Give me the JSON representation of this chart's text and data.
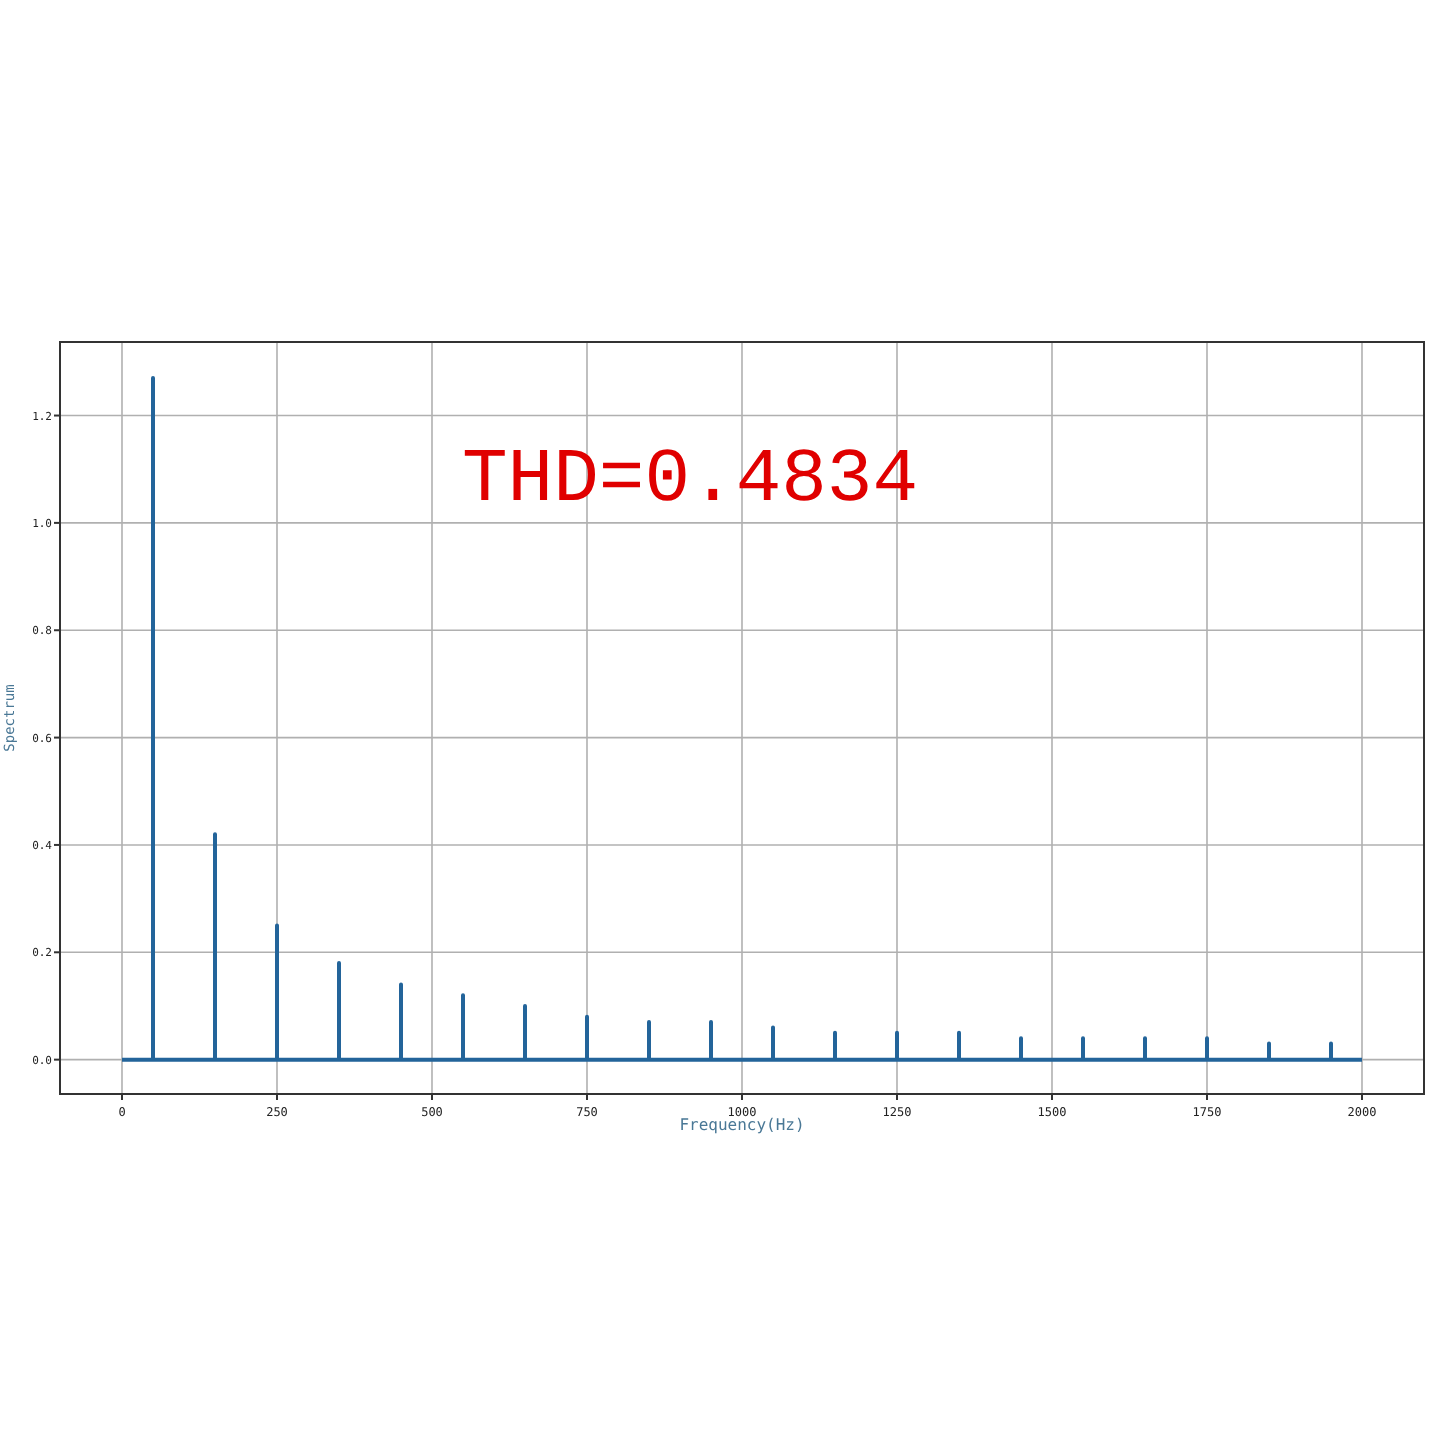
{
  "chart_data": {
    "type": "line",
    "xlabel": "Frequency(Hz)",
    "ylabel": "Spectrum",
    "annotations": [
      "THD=0.4834"
    ],
    "xlim": [
      -100,
      2100
    ],
    "xticks": [
      0,
      250,
      500,
      750,
      1000,
      1250,
      1500,
      1750,
      2000
    ],
    "ylim": [
      -0.064,
      1.337
    ],
    "yticks": [
      {
        "value": 0,
        "label": "0.0"
      },
      {
        "value": 0.2,
        "label": "0.2"
      },
      {
        "value": 0.4,
        "label": "0.4"
      },
      {
        "value": 0.6,
        "label": "0.6"
      },
      {
        "value": 0.8,
        "label": "0.8"
      },
      {
        "value": 1,
        "label": "1.0"
      },
      {
        "value": 1.2,
        "label": "1.2"
      }
    ],
    "grid": true,
    "marker": "none",
    "line_style": "solid",
    "series": [
      {
        "color": "#23649a",
        "x": [
          0,
          50,
          50,
          50,
          150,
          150,
          150,
          250,
          250,
          250,
          350,
          350,
          350,
          450,
          450,
          450,
          550,
          550,
          550,
          650,
          650,
          650,
          750,
          750,
          750,
          850,
          850,
          850,
          950,
          950,
          950,
          1050,
          1050,
          1050,
          1150,
          1150,
          1150,
          1250,
          1250,
          1250,
          1350,
          1350,
          1350,
          1450,
          1450,
          1450,
          1550,
          1550,
          1550,
          1650,
          1650,
          1650,
          1750,
          1750,
          1750,
          1850,
          1850,
          1850,
          1950,
          1950,
          1950,
          2000
        ],
        "values": [
          0,
          0,
          1.27,
          0,
          0,
          0.42,
          0,
          0,
          0.25,
          0,
          0,
          0.18,
          0,
          0,
          0.14,
          0,
          0,
          0.12,
          0,
          0,
          0.1,
          0,
          0,
          0.08,
          0,
          0,
          0.07,
          0,
          0,
          0.07,
          0,
          0,
          0.06,
          0,
          0,
          0.05,
          0,
          0,
          0.05,
          0,
          0,
          0.05,
          0,
          0,
          0.04,
          0,
          0,
          0.04,
          0,
          0,
          0.04,
          0,
          0,
          0.04,
          0,
          0,
          0.03,
          0,
          0,
          0.03,
          0,
          0
        ]
      }
    ]
  }
}
